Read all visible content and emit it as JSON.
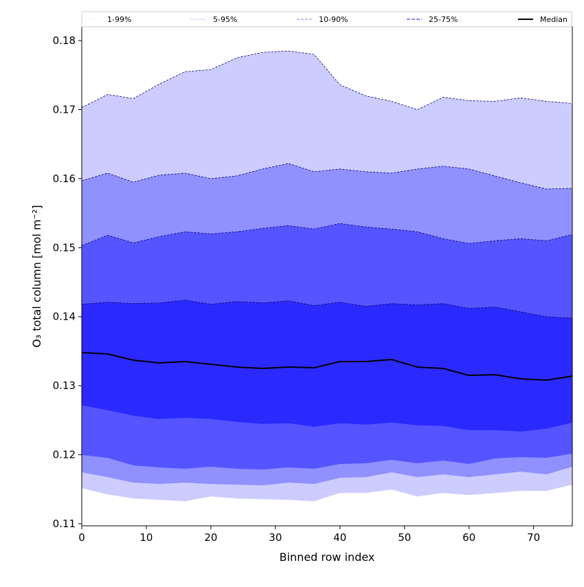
{
  "chart_data": {
    "type": "area",
    "title": "",
    "xlabel": "Binned row index",
    "ylabel": "O₃ total column [mol m⁻²]",
    "xlim": [
      0,
      76
    ],
    "ylim": [
      0.1097,
      0.182
    ],
    "xticks": [
      0,
      10,
      20,
      30,
      40,
      50,
      60,
      70
    ],
    "xtick_labels": [
      "0",
      "10",
      "20",
      "30",
      "40",
      "50",
      "60",
      "70"
    ],
    "yticks": [
      0.11,
      0.12,
      0.13,
      0.14,
      0.15,
      0.16,
      0.17,
      0.18
    ],
    "ytick_labels": [
      "0.11",
      "0.12",
      "0.13",
      "0.14",
      "0.15",
      "0.16",
      "0.17",
      "0.18"
    ],
    "legend_position": "top (above plot, horizontal)",
    "x": [
      0,
      4,
      8,
      12,
      16,
      20,
      24,
      28,
      32,
      36,
      40,
      44,
      48,
      52,
      56,
      60,
      64,
      68,
      72,
      76
    ],
    "bands": [
      {
        "name": "1-99%",
        "fill": "#ccccff",
        "legend_color": "#d8d8ff",
        "lower": [
          0.1152,
          0.1143,
          0.1137,
          0.1135,
          0.1133,
          0.114,
          0.1137,
          0.1136,
          0.1135,
          0.1133,
          0.1145,
          0.1145,
          0.115,
          0.114,
          0.1145,
          0.1142,
          0.1145,
          0.1148,
          0.1148,
          0.1157
        ],
        "upper": [
          0.1703,
          0.1722,
          0.1716,
          0.1737,
          0.1755,
          0.1758,
          0.1775,
          0.1783,
          0.1785,
          0.178,
          0.1736,
          0.172,
          0.1712,
          0.17,
          0.1718,
          0.1713,
          0.1712,
          0.1717,
          0.1712,
          0.1709
        ]
      },
      {
        "name": "5-95%",
        "fill": "#9090ff",
        "legend_color": "#a8a8f0",
        "lower": [
          0.1175,
          0.1168,
          0.116,
          0.1158,
          0.116,
          0.1158,
          0.1157,
          0.1156,
          0.116,
          0.1158,
          0.1167,
          0.1168,
          0.1175,
          0.1168,
          0.1172,
          0.1168,
          0.1172,
          0.1176,
          0.1172,
          0.1183
        ],
        "upper": [
          0.1597,
          0.1608,
          0.1595,
          0.1605,
          0.1608,
          0.16,
          0.1604,
          0.1614,
          0.1622,
          0.161,
          0.1614,
          0.161,
          0.1608,
          0.1614,
          0.1618,
          0.1614,
          0.1604,
          0.1594,
          0.1585,
          0.1586
        ]
      },
      {
        "name": "10-90%",
        "fill": "#5555ff",
        "legend_color": "#8080f0",
        "lower": [
          0.12,
          0.1196,
          0.1185,
          0.1182,
          0.118,
          0.1183,
          0.118,
          0.1179,
          0.1182,
          0.118,
          0.1187,
          0.1188,
          0.1193,
          0.1188,
          0.1192,
          0.1187,
          0.1195,
          0.1197,
          0.1196,
          0.1202
        ],
        "upper": [
          0.1503,
          0.1518,
          0.1507,
          0.1516,
          0.1523,
          0.152,
          0.1523,
          0.1528,
          0.1532,
          0.1527,
          0.1535,
          0.153,
          0.1527,
          0.1523,
          0.1513,
          0.1506,
          0.151,
          0.1513,
          0.151,
          0.1519
        ]
      },
      {
        "name": "25-75%",
        "fill": "#2a2aff",
        "legend_color": "#6060f0",
        "lower": [
          0.1272,
          0.1265,
          0.1257,
          0.1252,
          0.1254,
          0.1252,
          0.1248,
          0.1245,
          0.1246,
          0.1241,
          0.1246,
          0.1244,
          0.1247,
          0.1243,
          0.1242,
          0.1236,
          0.1236,
          0.1234,
          0.1238,
          0.1247
        ],
        "upper": [
          0.1418,
          0.1421,
          0.1419,
          0.142,
          0.1424,
          0.1418,
          0.1422,
          0.142,
          0.1423,
          0.1416,
          0.1421,
          0.1415,
          0.1419,
          0.1417,
          0.1419,
          0.1412,
          0.1414,
          0.1407,
          0.14,
          0.1398
        ]
      }
    ],
    "median": {
      "name": "Median",
      "color": "#000000",
      "values": [
        0.1348,
        0.1346,
        0.1337,
        0.1333,
        0.1335,
        0.1331,
        0.1327,
        0.1325,
        0.1327,
        0.1326,
        0.1335,
        0.1335,
        0.1338,
        0.1327,
        0.1325,
        0.1315,
        0.1316,
        0.131,
        0.1308,
        0.1314
      ]
    }
  }
}
